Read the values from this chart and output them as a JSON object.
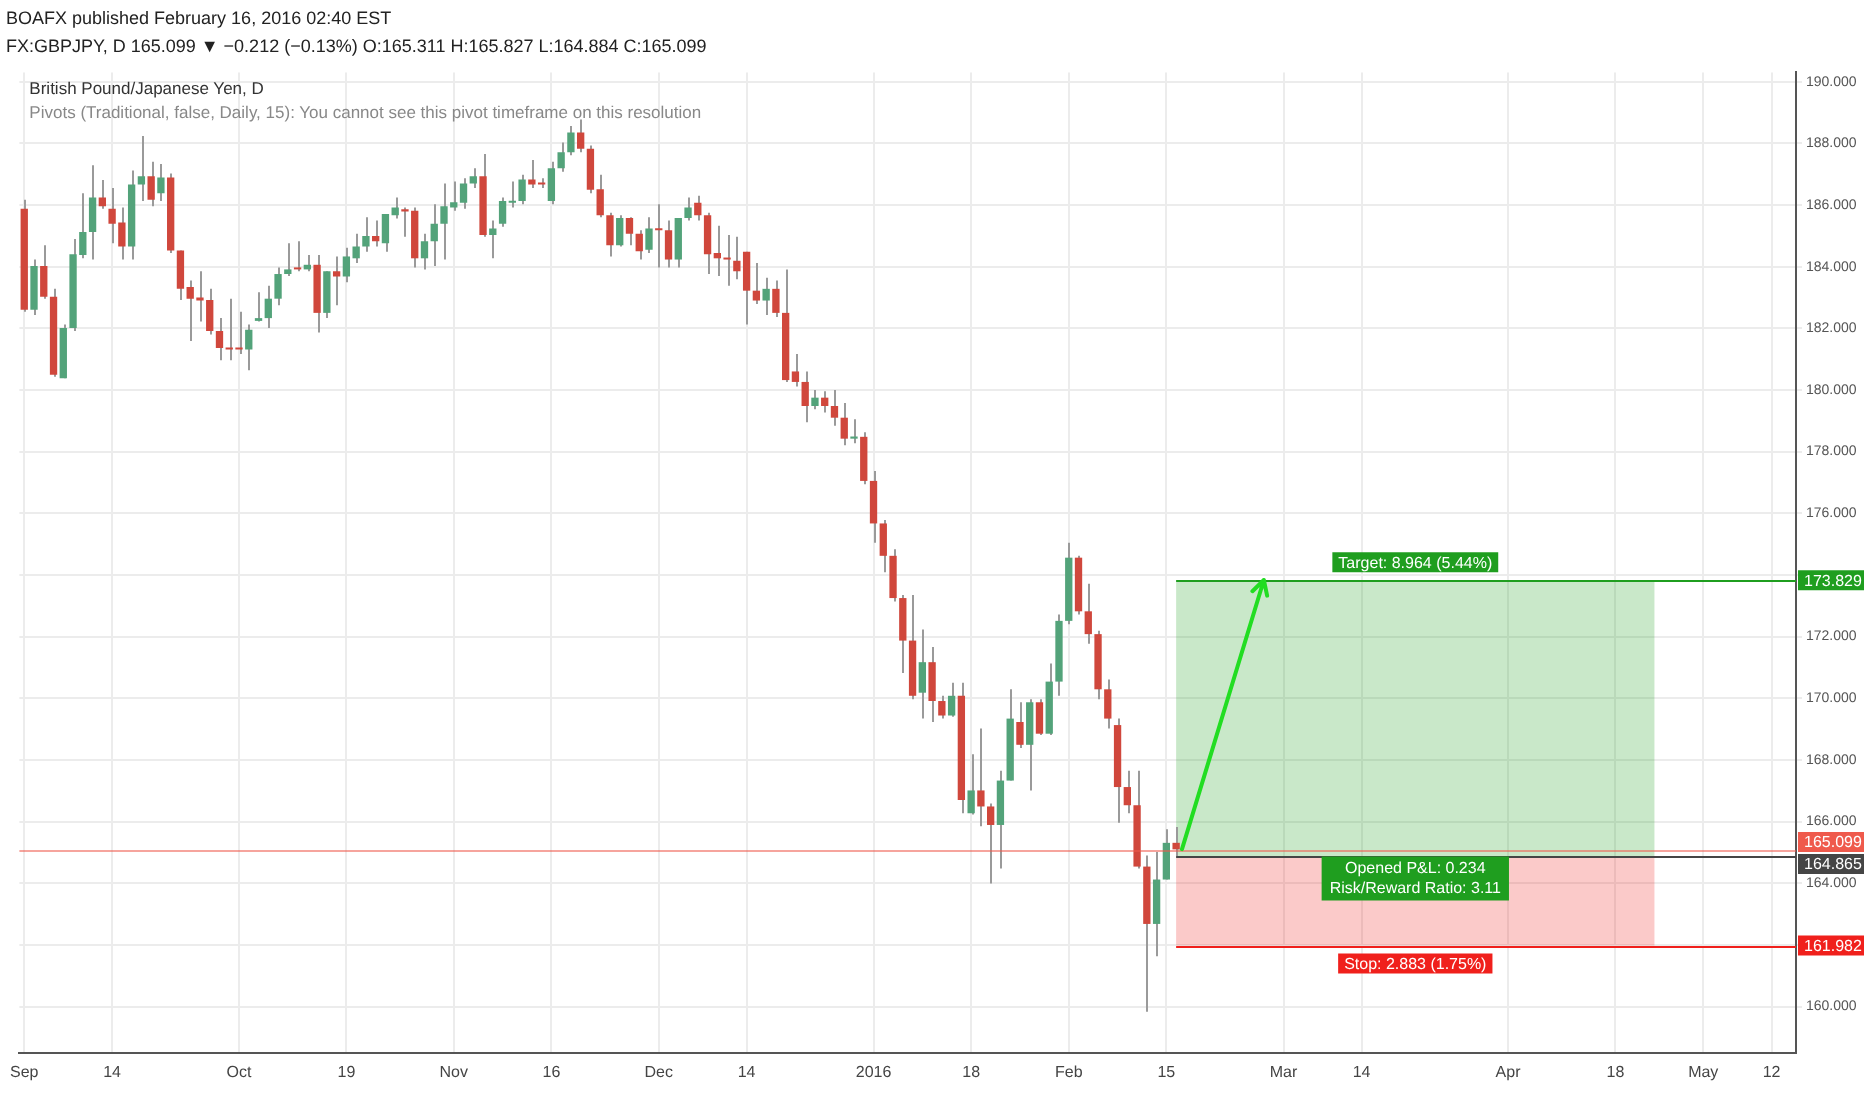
{
  "chart_data": {
    "type": "candlestick",
    "title": "British Pound/Japanese Yen, D",
    "subtitle": "Pivots (Traditional, false, Daily, 15): You cannot see this pivot timeframe on this resolution",
    "annotations": [
      "BOAFX published February 16, 2016 02:40 EST",
      "FX:GBPJPY, D 165.099 ▼ −0.212 (−0.13%) O:165.311 H:165.827 L:164.884 C:165.099",
      {
        "text": "Opened P&L: 0.234",
        "y": 164.865
      },
      {
        "text": "Risk/Reward Ratio: 3.11",
        "y": 164.865
      }
    ],
    "categories": [
      "Sep",
      null,
      null,
      null,
      null,
      null,
      null,
      null,
      null,
      "14",
      null,
      null,
      null,
      null,
      null,
      null,
      null,
      null,
      null,
      null,
      null,
      null,
      "Oct",
      null,
      null,
      null,
      null,
      null,
      null,
      null,
      null,
      null,
      null,
      "19",
      null,
      null,
      null,
      null,
      null,
      null,
      null,
      null,
      null,
      null,
      "Nov",
      null,
      null,
      null,
      null,
      null,
      null,
      null,
      null,
      null,
      "16",
      null,
      null,
      null,
      null,
      null,
      null,
      null,
      null,
      null,
      null,
      "Dec",
      null,
      null,
      null,
      null,
      null,
      null,
      null,
      null,
      "14",
      null,
      null,
      null,
      null,
      null,
      null,
      null,
      null,
      null,
      null,
      null,
      null,
      "2016",
      null,
      null,
      null,
      null,
      null,
      null,
      null,
      null,
      null,
      "18",
      null,
      null,
      null,
      null,
      null,
      null,
      null,
      null,
      null,
      "Feb",
      null,
      null,
      null,
      null,
      null,
      null,
      null,
      null,
      null,
      "15",
      null,
      null,
      null,
      null,
      null,
      null,
      null,
      null,
      null,
      null,
      null,
      "Mar",
      null,
      null,
      null,
      null,
      null,
      null,
      null,
      "14",
      null,
      null,
      null,
      null,
      null,
      null,
      null,
      null,
      null,
      null,
      null,
      null,
      null,
      null,
      "Apr",
      null,
      null,
      null,
      null,
      null,
      null,
      null,
      null,
      null,
      null,
      "18",
      null,
      null,
      null,
      null,
      null,
      null,
      null,
      null,
      "May",
      null,
      null,
      null,
      null,
      null,
      null,
      "12",
      null,
      null
    ],
    "ohlc": [
      [
        185.88,
        186.17,
        182.54,
        182.6
      ],
      [
        182.6,
        184.23,
        182.43,
        184.02
      ],
      [
        184.02,
        184.69,
        182.96,
        183.02
      ],
      [
        183.02,
        183.28,
        180.43,
        180.49
      ],
      [
        180.38,
        182.12,
        180.38,
        182.01
      ],
      [
        182.01,
        184.9,
        181.91,
        184.4
      ],
      [
        184.38,
        186.38,
        184.27,
        185.12
      ],
      [
        185.12,
        187.29,
        184.23,
        186.24
      ],
      [
        186.24,
        186.81,
        185.88,
        185.96
      ],
      [
        185.88,
        186.55,
        184.76,
        185.39
      ],
      [
        185.43,
        185.92,
        184.23,
        184.65
      ],
      [
        184.65,
        187.12,
        184.23,
        186.66
      ],
      [
        186.66,
        188.24,
        186.13,
        186.93
      ],
      [
        186.93,
        187.4,
        185.96,
        186.17
      ],
      [
        186.38,
        187.33,
        186.13,
        186.89
      ],
      [
        186.89,
        187.02,
        184.44,
        184.52
      ],
      [
        184.52,
        184.52,
        182.92,
        183.28
      ],
      [
        183.34,
        183.55,
        181.59,
        182.96
      ],
      [
        183.0,
        183.85,
        182.22,
        182.9
      ],
      [
        182.92,
        183.28,
        181.8,
        181.91
      ],
      [
        181.91,
        182.33,
        180.96,
        181.36
      ],
      [
        181.38,
        182.96,
        180.96,
        181.31
      ],
      [
        181.36,
        182.54,
        181.17,
        181.31
      ],
      [
        181.31,
        182.12,
        180.64,
        181.95
      ],
      [
        182.24,
        183.17,
        182.22,
        182.33
      ],
      [
        182.33,
        183.38,
        182.01,
        182.96
      ],
      [
        182.96,
        183.97,
        182.75,
        183.76
      ],
      [
        183.76,
        184.76,
        183.7,
        183.91
      ],
      [
        183.97,
        184.82,
        183.85,
        183.91
      ],
      [
        183.91,
        184.38,
        183.85,
        184.06
      ],
      [
        184.06,
        184.38,
        181.86,
        182.5
      ],
      [
        182.5,
        183.85,
        182.33,
        183.85
      ],
      [
        183.85,
        184.33,
        182.75,
        183.68
      ],
      [
        183.68,
        184.61,
        183.49,
        184.33
      ],
      [
        184.27,
        185.07,
        184.12,
        184.65
      ],
      [
        184.65,
        185.6,
        184.48,
        184.99
      ],
      [
        184.99,
        185.5,
        184.65,
        184.82
      ],
      [
        184.76,
        185.71,
        184.48,
        185.71
      ],
      [
        185.67,
        186.24,
        185.56,
        185.92
      ],
      [
        185.86,
        185.92,
        184.97,
        185.79
      ],
      [
        185.81,
        185.92,
        183.97,
        184.27
      ],
      [
        184.27,
        185.07,
        183.91,
        184.82
      ],
      [
        184.82,
        186.02,
        184.02,
        185.39
      ],
      [
        185.39,
        186.7,
        184.23,
        185.96
      ],
      [
        185.92,
        186.76,
        185.81,
        186.09
      ],
      [
        186.07,
        186.87,
        185.88,
        186.7
      ],
      [
        186.7,
        187.19,
        186.55,
        186.93
      ],
      [
        186.93,
        187.65,
        184.97,
        185.03
      ],
      [
        185.03,
        185.5,
        184.27,
        185.24
      ],
      [
        185.39,
        186.24,
        185.29,
        186.13
      ],
      [
        186.07,
        186.76,
        185.92,
        186.13
      ],
      [
        186.13,
        186.98,
        186.02,
        186.83
      ],
      [
        186.83,
        187.46,
        186.55,
        186.66
      ],
      [
        186.7,
        186.87,
        186.55,
        186.66
      ],
      [
        186.13,
        187.4,
        186.02,
        187.19
      ],
      [
        187.19,
        188.03,
        187.08,
        187.71
      ],
      [
        187.71,
        188.56,
        187.61,
        188.35
      ],
      [
        188.35,
        188.77,
        187.71,
        187.82
      ],
      [
        187.82,
        187.93,
        186.38,
        186.49
      ],
      [
        186.51,
        186.98,
        185.6,
        185.67
      ],
      [
        185.67,
        185.75,
        184.33,
        184.69
      ],
      [
        184.69,
        185.67,
        184.65,
        185.58
      ],
      [
        185.58,
        185.6,
        184.69,
        185.07
      ],
      [
        185.07,
        185.18,
        184.23,
        184.5
      ],
      [
        184.55,
        185.6,
        184.44,
        185.24
      ],
      [
        185.24,
        186.02,
        183.97,
        185.18
      ],
      [
        185.18,
        185.5,
        183.97,
        184.23
      ],
      [
        184.23,
        185.58,
        183.97,
        185.58
      ],
      [
        185.58,
        186.24,
        185.5,
        185.92
      ],
      [
        186.07,
        186.3,
        185.5,
        185.67
      ],
      [
        185.67,
        185.75,
        183.76,
        184.4
      ],
      [
        184.44,
        185.33,
        183.7,
        184.27
      ],
      [
        184.27,
        185.03,
        183.38,
        184.23
      ],
      [
        184.19,
        184.97,
        183.59,
        183.85
      ],
      [
        184.48,
        184.48,
        182.12,
        183.22
      ],
      [
        183.22,
        184.12,
        182.79,
        182.9
      ],
      [
        182.9,
        183.64,
        182.43,
        183.28
      ],
      [
        183.28,
        183.55,
        182.37,
        182.5
      ],
      [
        182.5,
        183.91,
        180.26,
        180.32
      ],
      [
        180.6,
        181.17,
        180.11,
        180.26
      ],
      [
        180.26,
        180.6,
        178.95,
        179.48
      ],
      [
        179.48,
        180.0,
        179.37,
        179.75
      ],
      [
        179.75,
        179.96,
        179.27,
        179.48
      ],
      [
        179.48,
        180.0,
        178.84,
        179.1
      ],
      [
        179.1,
        179.58,
        178.21,
        178.42
      ],
      [
        178.42,
        179.05,
        178.27,
        178.49
      ],
      [
        178.48,
        178.63,
        176.94,
        177.05
      ],
      [
        177.05,
        177.37,
        175.04,
        175.67
      ],
      [
        175.67,
        175.78,
        174.09,
        174.62
      ],
      [
        174.62,
        174.83,
        173.14,
        173.25
      ],
      [
        173.25,
        173.35,
        170.82,
        171.87
      ],
      [
        171.87,
        173.35,
        169.97,
        170.08
      ],
      [
        170.18,
        172.23,
        169.34,
        171.17
      ],
      [
        171.17,
        171.66,
        169.23,
        169.91
      ],
      [
        169.91,
        170.08,
        169.34,
        169.44
      ],
      [
        169.44,
        170.5,
        169.4,
        170.08
      ],
      [
        170.08,
        170.5,
        166.27,
        166.7
      ],
      [
        166.27,
        168.18,
        166.23,
        167.01
      ],
      [
        167.01,
        169.02,
        165.85,
        166.49
      ],
      [
        166.49,
        166.59,
        163.99,
        165.89
      ],
      [
        165.89,
        167.65,
        164.48,
        167.33
      ],
      [
        167.33,
        170.29,
        167.33,
        169.34
      ],
      [
        169.23,
        169.87,
        168.39,
        168.49
      ],
      [
        168.49,
        169.97,
        167.01,
        169.87
      ],
      [
        169.87,
        169.97,
        168.81,
        168.85
      ],
      [
        168.85,
        171.13,
        168.81,
        170.54
      ],
      [
        170.54,
        172.72,
        170.08,
        172.51
      ],
      [
        172.51,
        175.04,
        172.4,
        174.56
      ],
      [
        174.56,
        174.62,
        172.72,
        172.82
      ],
      [
        172.82,
        173.71,
        171.77,
        172.08
      ],
      [
        172.08,
        172.19,
        169.97,
        170.29
      ],
      [
        170.29,
        170.61,
        169.02,
        169.34
      ],
      [
        169.13,
        169.34,
        165.96,
        167.12
      ],
      [
        167.12,
        167.65,
        166.27,
        166.53
      ],
      [
        166.53,
        167.65,
        164.48,
        164.54
      ],
      [
        164.54,
        164.9,
        159.83,
        162.68
      ],
      [
        162.68,
        165.01,
        161.63,
        164.12
      ],
      [
        164.12,
        165.75,
        164.12,
        165.31
      ],
      [
        165.311,
        165.827,
        164.884,
        165.099
      ],
      null,
      null,
      null,
      null,
      null,
      null,
      null,
      null,
      null,
      null,
      null,
      null,
      null,
      null,
      null,
      null,
      null,
      null,
      null,
      null,
      null,
      null,
      null,
      null,
      null,
      null,
      null,
      null,
      null,
      null,
      null,
      null,
      null,
      null,
      null,
      null,
      null,
      null,
      null,
      null,
      null,
      null,
      null,
      null,
      null,
      null,
      null,
      null,
      null,
      null,
      null,
      null,
      null,
      null,
      null,
      null,
      null,
      null,
      null,
      null,
      null,
      null,
      null
    ],
    "colors": [
      "#d0473c",
      "#53a37a",
      "#d0473c",
      "#d0473c",
      "#53a37a",
      "#53a37a",
      "#53a37a",
      "#53a37a",
      "#d0473c",
      "#d0473c",
      "#d0473c",
      "#53a37a",
      "#53a37a",
      "#d0473c",
      "#53a37a",
      "#d0473c",
      "#d0473c",
      "#d0473c",
      "#d0473c",
      "#d0473c",
      "#d0473c",
      "#d0473c",
      "#d0473c",
      "#53a37a",
      "#53a37a",
      "#53a37a",
      "#53a37a",
      "#53a37a",
      "#d0473c",
      "#53a37a",
      "#d0473c",
      "#53a37a",
      "#d0473c",
      "#53a37a",
      "#53a37a",
      "#53a37a",
      "#d0473c",
      "#53a37a",
      "#53a37a",
      "#d0473c",
      "#d0473c",
      "#53a37a",
      "#53a37a",
      "#53a37a",
      "#53a37a",
      "#53a37a",
      "#53a37a",
      "#d0473c",
      "#53a37a",
      "#53a37a",
      "#53a37a",
      "#53a37a",
      "#d0473c",
      "#d0473c",
      "#53a37a",
      "#53a37a",
      "#53a37a",
      "#d0473c",
      "#d0473c",
      "#d0473c",
      "#d0473c",
      "#53a37a",
      "#d0473c",
      "#d0473c",
      "#53a37a",
      "#d0473c",
      "#d0473c",
      "#53a37a",
      "#53a37a",
      "#d0473c",
      "#d0473c",
      "#d0473c",
      "#d0473c",
      "#d0473c",
      "#d0473c",
      "#d0473c",
      "#53a37a",
      "#d0473c",
      "#d0473c",
      "#d0473c",
      "#d0473c",
      "#53a37a",
      "#d0473c",
      "#d0473c",
      "#d0473c",
      "#53a37a",
      "#d0473c",
      "#d0473c",
      "#d0473c",
      "#d0473c",
      "#d0473c",
      "#d0473c",
      "#53a37a",
      "#d0473c",
      "#d0473c",
      "#53a37a",
      "#d0473c",
      "#53a37a",
      "#d0473c",
      "#d0473c",
      "#53a37a",
      "#53a37a",
      "#d0473c",
      "#53a37a",
      "#d0473c",
      "#53a37a",
      "#53a37a",
      "#53a37a",
      "#d0473c",
      "#d0473c",
      "#d0473c",
      "#d0473c",
      "#d0473c",
      "#d0473c",
      "#d0473c",
      "#d0473c",
      "#53a37a",
      "#53a37a",
      "#d0473c",
      null,
      null,
      null,
      null,
      null,
      null,
      null,
      null,
      null,
      null,
      null,
      null,
      null,
      null,
      null,
      null,
      null,
      null,
      null,
      null,
      null,
      null,
      null,
      null,
      null,
      null,
      null,
      null,
      null,
      null,
      null,
      null,
      null,
      null,
      null,
      null,
      null,
      null,
      null,
      null,
      null,
      null,
      null,
      null,
      null,
      null,
      null,
      null,
      null,
      null,
      null,
      null,
      null,
      null,
      null,
      null,
      null,
      null,
      null,
      null,
      null,
      null,
      null
    ],
    "ylim": [
      158.5,
      190.3
    ],
    "yticks": [
      {
        "value": 160,
        "label": "160.000"
      },
      {
        "value": 162,
        "label": null
      },
      {
        "value": 164,
        "label": "164.000"
      },
      {
        "value": 166,
        "label": "166.000"
      },
      {
        "value": 168,
        "label": "168.000"
      },
      {
        "value": 170,
        "label": "170.000"
      },
      {
        "value": 172,
        "label": "172.000"
      },
      {
        "value": 174,
        "label": null
      },
      {
        "value": 176,
        "label": "176.000"
      },
      {
        "value": 178,
        "label": "178.000"
      },
      {
        "value": 180,
        "label": "180.000"
      },
      {
        "value": 182,
        "label": "182.000"
      },
      {
        "value": 184,
        "label": "184.000"
      },
      {
        "value": 186,
        "label": "186.000"
      },
      {
        "value": 188,
        "label": "188.000"
      },
      {
        "value": 190,
        "label": "190.000"
      }
    ],
    "grid": true,
    "ref_lines": [
      {
        "axis": "y",
        "value": 173.829,
        "label": "173.829",
        "color": "#1f9e1f"
      },
      {
        "axis": "y",
        "value": 165.099,
        "label": "165.099",
        "color": "#ef5a4c"
      },
      {
        "axis": "y",
        "value": 161.982,
        "label": "161.982",
        "color": "#f0201c"
      },
      {
        "axis": "y",
        "value": 164.865,
        "label": "164.865",
        "color": "#454545"
      }
    ],
    "bands": [
      {
        "axis": "y",
        "from": 164.865,
        "to": 173.829,
        "label": "Target: 8.964 (5.44%)",
        "color": "#1f9e1f"
      },
      {
        "axis": "y",
        "from": 161.982,
        "to": 164.865,
        "label": "Stop: 2.883 (1.75%)",
        "color": "#f0201c"
      }
    ]
  }
}
